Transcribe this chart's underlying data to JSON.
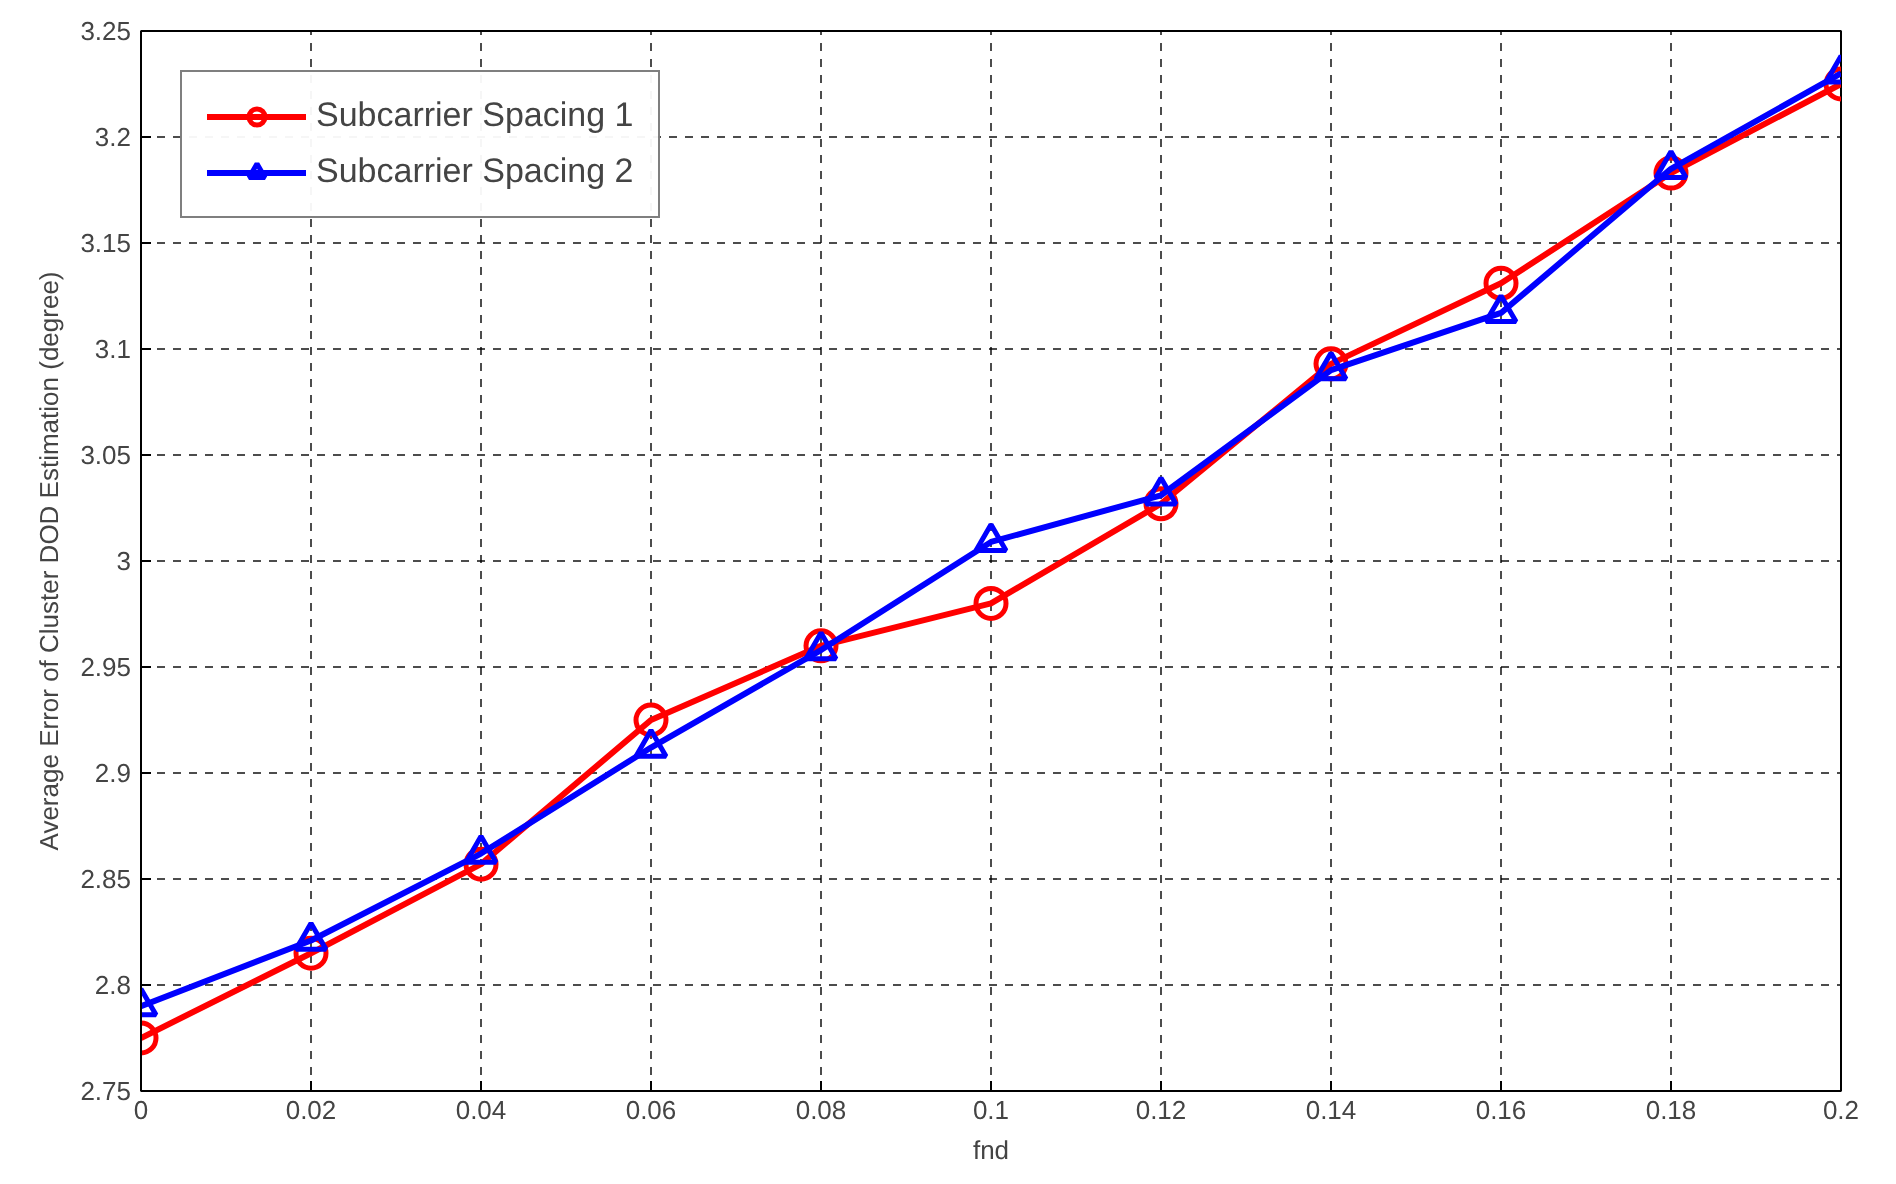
{
  "chart_data": {
    "type": "line",
    "xlabel": "fnd",
    "ylabel": "Average Error of Cluster DOD Estimation (degree)",
    "x": [
      0,
      0.02,
      0.04,
      0.06,
      0.08,
      0.1,
      0.12,
      0.14,
      0.16,
      0.18,
      0.2
    ],
    "series": [
      {
        "name": "Subcarrier Spacing 1",
        "color": "#ff0000",
        "marker": "circle",
        "values": [
          2.775,
          2.815,
          2.857,
          2.925,
          2.96,
          2.98,
          3.027,
          3.093,
          3.131,
          3.183,
          3.225
        ]
      },
      {
        "name": "Subcarrier Spacing 2",
        "color": "#0000ff",
        "marker": "triangle",
        "values": [
          2.79,
          2.821,
          2.862,
          2.912,
          2.958,
          3.009,
          3.031,
          3.09,
          3.117,
          3.185,
          3.23
        ]
      }
    ],
    "xlim": [
      0,
      0.2
    ],
    "xticks": [
      0,
      0.02,
      0.04,
      0.06,
      0.08,
      0.1,
      0.12,
      0.14,
      0.16,
      0.18,
      0.2
    ],
    "ylim": [
      2.75,
      3.25
    ],
    "yticks": [
      2.75,
      2.8,
      2.85,
      2.9,
      2.95,
      3,
      3.05,
      3.1,
      3.15,
      3.2,
      3.25
    ],
    "grid": true,
    "legend": "top left",
    "line_style": "solid"
  }
}
